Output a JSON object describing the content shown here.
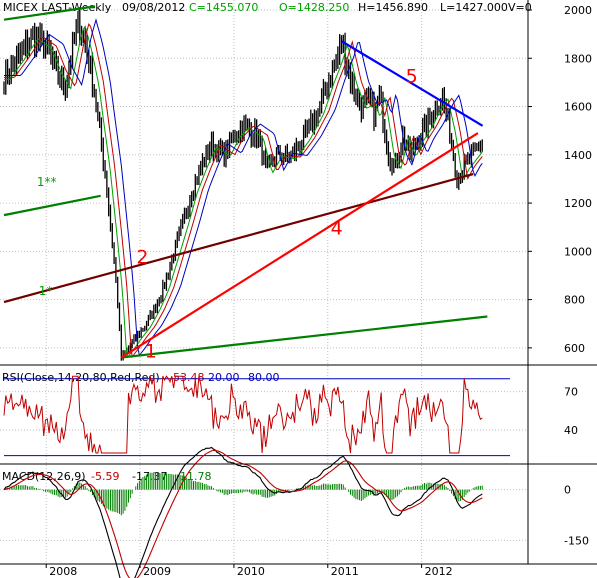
{
  "chart_data": {
    "type": "candlestick",
    "header": {
      "title": "MICEX LAST-Weekly",
      "date": "09/08/2012",
      "close": "C=1455.070",
      "open": "O=1428.250",
      "high": "H=1456.890",
      "low": "L=1427.000",
      "volume": "V=0"
    },
    "x_ticks": [
      "2008",
      "2009",
      "2010",
      "2011",
      "2012"
    ],
    "y_ticks": [
      "2000",
      "1800",
      "1600",
      "1400",
      "1200",
      "1000",
      "800",
      "600"
    ],
    "ylim": [
      500,
      2000
    ],
    "price_path": {
      "t": [
        2007.55,
        2007.7,
        2007.85,
        2008.0,
        2008.1,
        2008.2,
        2008.3,
        2008.35,
        2008.42,
        2008.5,
        2008.55,
        2008.62,
        2008.7,
        2008.75,
        2008.8,
        2008.88,
        2008.95,
        2009.05,
        2009.15,
        2009.25,
        2009.35,
        2009.45,
        2009.55,
        2009.65,
        2009.75,
        2009.9,
        2010.0,
        2010.1,
        2010.25,
        2010.35,
        2010.45,
        2010.6,
        2010.75,
        2010.9,
        2011.0,
        2011.1,
        2011.15,
        2011.25,
        2011.35,
        2011.45,
        2011.5,
        2011.55,
        2011.65,
        2011.72,
        2011.8,
        2011.88,
        2011.95,
        2012.05,
        2012.15,
        2012.22,
        2012.3,
        2012.38,
        2012.45,
        2012.55,
        2012.65
      ],
      "price": [
        1720,
        1800,
        1890,
        1850,
        1750,
        1680,
        1880,
        1950,
        1850,
        1700,
        1550,
        1350,
        1050,
        850,
        560,
        600,
        640,
        690,
        760,
        850,
        980,
        1110,
        1250,
        1350,
        1440,
        1400,
        1480,
        1520,
        1480,
        1330,
        1400,
        1390,
        1470,
        1580,
        1700,
        1800,
        1870,
        1700,
        1600,
        1620,
        1560,
        1650,
        1400,
        1350,
        1480,
        1400,
        1460,
        1520,
        1600,
        1640,
        1500,
        1300,
        1350,
        1400,
        1455
      ]
    },
    "moving_averages": [
      {
        "color": "#00a000",
        "lag": 0.06
      },
      {
        "color": "#c00000",
        "lag": 0.11
      },
      {
        "color": "#0000c0",
        "lag": 0.18
      }
    ],
    "trendlines": [
      {
        "label": "1",
        "color": "#008000",
        "t": [
          2008.8,
          2012.7
        ],
        "v": [
          560,
          730
        ]
      },
      {
        "label": "1*",
        "color": "#008000",
        "t": [
          2007.55,
          2008.52
        ],
        "v": [
          1960,
          2015
        ]
      },
      {
        "label": "1**",
        "color": "#008000",
        "t": [
          2007.55,
          2008.58
        ],
        "v": [
          1150,
          1230
        ]
      },
      {
        "label": "2",
        "color": "#700000",
        "t": [
          2007.55,
          2012.55
        ],
        "v": [
          790,
          1320
        ]
      },
      {
        "label": "4",
        "color": "#ff0000",
        "t": [
          2008.8,
          2012.6
        ],
        "v": [
          560,
          1490
        ]
      },
      {
        "label": "5",
        "color": "#0000ff",
        "t": [
          2011.15,
          2012.65
        ],
        "v": [
          1870,
          1520
        ]
      }
    ],
    "annotations": [
      {
        "text": "1",
        "color": "#ff0000",
        "t": 2009.05,
        "v": 560
      },
      {
        "text": "2",
        "color": "#ff0000",
        "t": 2008.96,
        "v": 950
      },
      {
        "text": "4",
        "color": "#ff0000",
        "t": 2011.03,
        "v": 1070
      },
      {
        "text": "5",
        "color": "#ff0000",
        "t": 2011.83,
        "v": 1700
      },
      {
        "text": "1**",
        "color": "#00a000",
        "t": 2007.9,
        "v": 1270
      },
      {
        "text": "1*",
        "color": "#00a000",
        "t": 2007.92,
        "v": 820
      }
    ],
    "rsi": {
      "label": "RSI(Close,14,20,80,Red,Red)",
      "value": "53.48",
      "lower": "20.00",
      "upper": "80.00",
      "y_ticks": [
        "70",
        "40"
      ],
      "ylim": [
        15,
        90
      ],
      "levels": [
        80,
        20
      ]
    },
    "macd": {
      "label": "MACD(12,26,9)",
      "value": "-5.59",
      "signal": "-17.37",
      "hist": "11.78",
      "y_ticks": [
        "0",
        "-150"
      ],
      "ylim": [
        -220,
        70
      ]
    },
    "colors": {
      "price": "#000000",
      "rsi_line": "#c00000",
      "rsi_levels": "#0000c0",
      "macd_line": "#000000",
      "macd_signal": "#c00000",
      "macd_hist": "#008000",
      "grid": "#c0c0c0"
    }
  }
}
